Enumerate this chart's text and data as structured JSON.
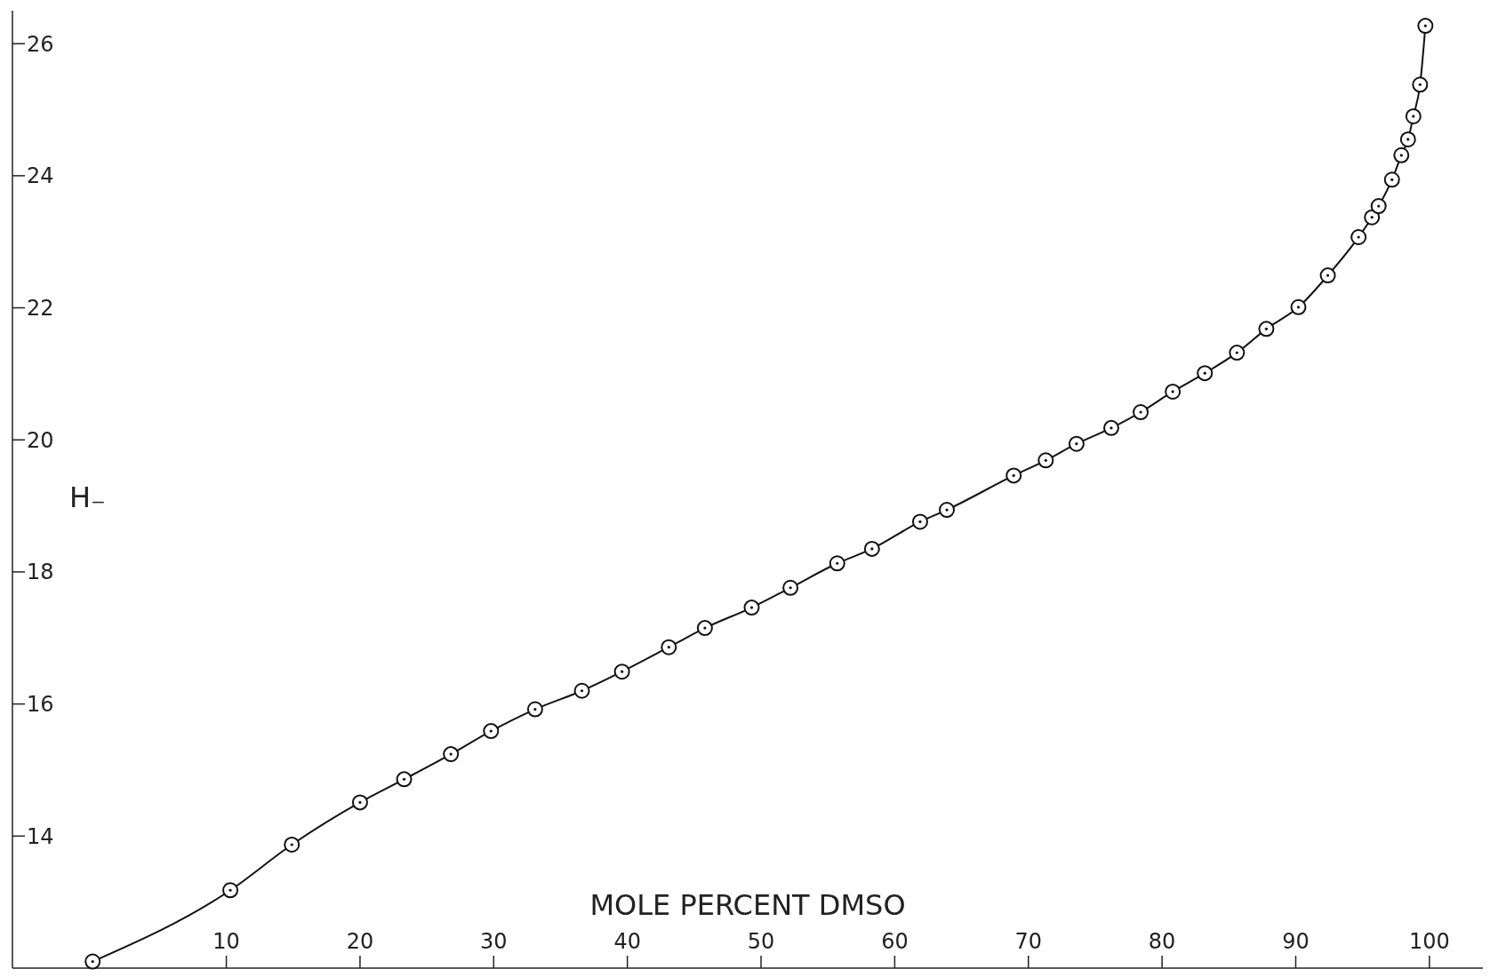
{
  "chart_data": {
    "type": "line",
    "xlabel": "MOLE PERCENT DMSO",
    "ylabel": "H₋",
    "xlim": [
      -6,
      104
    ],
    "ylim": [
      12,
      26.5
    ],
    "xticks": [
      10,
      20,
      30,
      40,
      50,
      60,
      70,
      80,
      90,
      100
    ],
    "yticks": [
      14,
      16,
      18,
      20,
      22,
      24,
      26
    ],
    "marker": "circle",
    "line_style": "solid",
    "grid": false,
    "series": [
      {
        "color": "#111111",
        "x": [
          0,
          10.3,
          14.9,
          20.0,
          23.3,
          26.8,
          29.8,
          33.1,
          36.6,
          39.6,
          43.1,
          45.8,
          49.3,
          52.2,
          55.7,
          58.3,
          61.9,
          63.9,
          68.9,
          71.3,
          73.6,
          76.2,
          78.4,
          80.8,
          83.2,
          85.6,
          87.8,
          90.2,
          92.4,
          94.7,
          95.7,
          96.2,
          97.2,
          97.9,
          98.4,
          98.8,
          99.3,
          99.7
        ],
        "values": [
          12.1,
          13.18,
          13.87,
          14.51,
          14.86,
          15.24,
          15.59,
          15.92,
          16.2,
          16.49,
          16.86,
          17.15,
          17.46,
          17.76,
          18.13,
          18.35,
          18.76,
          18.94,
          19.46,
          19.69,
          19.94,
          20.18,
          20.42,
          20.73,
          21.01,
          21.32,
          21.68,
          22.01,
          22.49,
          23.07,
          23.37,
          23.54,
          23.94,
          24.31,
          24.55,
          24.9,
          25.38,
          26.27
        ]
      }
    ]
  }
}
